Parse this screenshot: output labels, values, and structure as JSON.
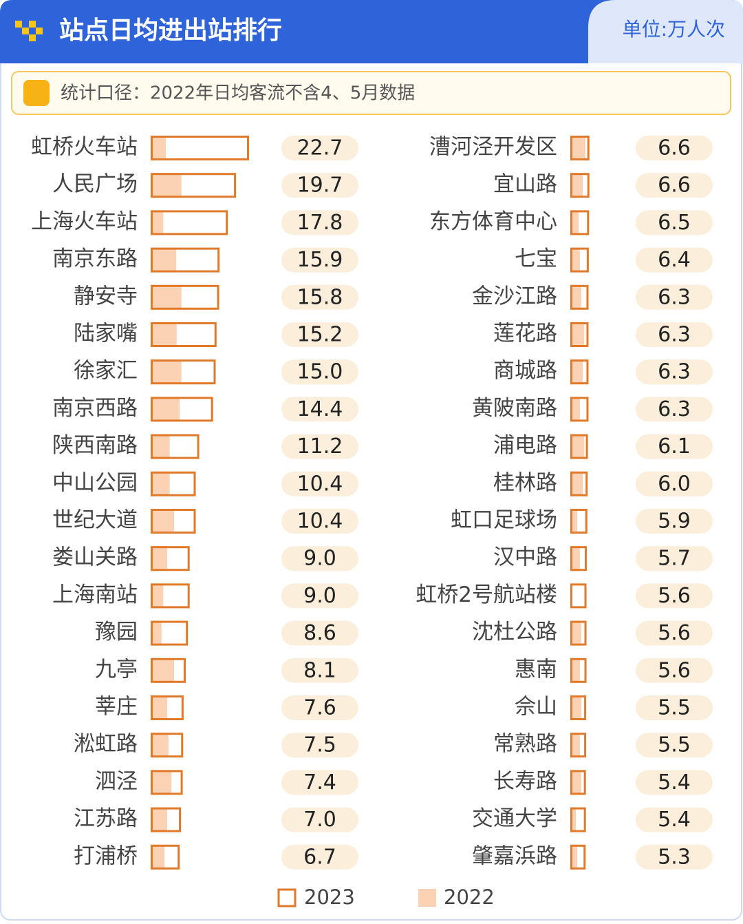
{
  "header": {
    "title": "站点日均进出站排行",
    "unit": "单位:万人次"
  },
  "note": "统计口径：2022年日均客流不含4、5月数据",
  "chart_data": {
    "type": "bar",
    "categories": [
      "虹桥火车站",
      "人民广场",
      "上海火车站",
      "南京东路",
      "静安寺",
      "陆家嘴",
      "徐家汇",
      "南京西路",
      "陕西南路",
      "中山公园",
      "世纪大道",
      "娄山关路",
      "上海南站",
      "豫园",
      "九亭",
      "莘庄",
      "淞虹路",
      "泗泾",
      "江苏路",
      "打浦桥",
      "漕河泾开发区",
      "宜山路",
      "东方体育中心",
      "七宝",
      "金沙江路",
      "莲花路",
      "商城路",
      "黄陂南路",
      "浦电路",
      "桂林路",
      "虹口足球场",
      "汉中路",
      "虹桥2号航站楼",
      "沈杜公路",
      "惠南",
      "佘山",
      "常熟路",
      "长寿路",
      "交通大学",
      "肇嘉浜路"
    ],
    "series": [
      {
        "name": "2023",
        "color": "#e07a2a",
        "values": [
          22.7,
          19.7,
          17.8,
          15.9,
          15.8,
          15.2,
          15.0,
          14.4,
          11.2,
          10.4,
          10.4,
          9.0,
          9.0,
          8.6,
          8.1,
          7.6,
          7.5,
          7.4,
          7.0,
          6.7,
          6.6,
          6.6,
          6.5,
          6.4,
          6.3,
          6.3,
          6.3,
          6.3,
          6.1,
          6.0,
          5.9,
          5.7,
          5.6,
          5.6,
          5.6,
          5.5,
          5.5,
          5.4,
          5.4,
          5.3
        ],
        "value_labels": [
          "22.7",
          "19.7",
          "17.8",
          "15.9",
          "15.8",
          "15.2",
          "15.0",
          "14.4",
          "11.2",
          "10.4",
          "10.4",
          "9.0",
          "9.0",
          "8.6",
          "8.1",
          "7.6",
          "7.5",
          "7.4",
          "7.0",
          "6.7",
          "6.6",
          "6.6",
          "6.5",
          "6.4",
          "6.3",
          "6.3",
          "6.3",
          "6.3",
          "6.1",
          "6.0",
          "5.9",
          "5.7",
          "5.6",
          "5.6",
          "5.6",
          "5.5",
          "5.5",
          "5.4",
          "5.4",
          "5.3"
        ]
      },
      {
        "name": "2022",
        "color": "#fcd2b4",
        "values": [
          3.5,
          7.1,
          2.9,
          5.9,
          7.1,
          6.0,
          7.1,
          6.7,
          4.4,
          4.4,
          5.4,
          3.8,
          2.9,
          2.5,
          5.4,
          3.8,
          4.1,
          4.8,
          3.8,
          3.2,
          5.2,
          4.3,
          2.9,
          3.3,
          3.8,
          4.8,
          4.3,
          3.3,
          4.8,
          4.3,
          2.4,
          3.3,
          0,
          3.8,
          3.3,
          3.8,
          3.3,
          3.8,
          1.9,
          2.4
        ]
      }
    ],
    "xlim": [
      0,
      30
    ]
  }
}
